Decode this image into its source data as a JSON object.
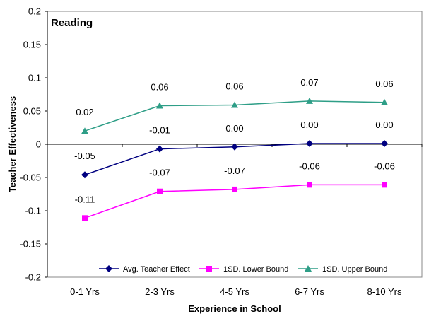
{
  "chart_data": {
    "type": "line",
    "title": "Reading",
    "xlabel": "Experience in School",
    "ylabel": "Teacher Effectiveness",
    "categories": [
      "0-1 Yrs",
      "2-3 Yrs",
      "4-5 Yrs",
      "6-7 Yrs",
      "8-10 Yrs"
    ],
    "ylim": [
      -0.2,
      0.2
    ],
    "yticks": [
      -0.2,
      -0.15,
      -0.1,
      -0.05,
      0,
      0.05,
      0.1,
      0.15,
      0.2
    ],
    "ytick_labels": [
      "-0.2",
      "-0.15",
      "-0.1",
      "-0.05",
      "0",
      "0.05",
      "0.1",
      "0.15",
      "0.2"
    ],
    "grid": false,
    "legend_position": "bottom-inside",
    "series": [
      {
        "name": "Avg. Teacher Effect",
        "color": "#000080",
        "marker": "diamond",
        "values": [
          -0.046,
          -0.007,
          -0.004,
          0.001,
          0.001
        ],
        "labels": [
          "-0.05",
          "-0.01",
          "0.00",
          "0.00",
          "0.00"
        ]
      },
      {
        "name": "1SD. Lower Bound",
        "color": "#FF00FF",
        "marker": "square",
        "values": [
          -0.111,
          -0.071,
          -0.068,
          -0.061,
          -0.061
        ],
        "labels": [
          "-0.11",
          "-0.07",
          "-0.07",
          "-0.06",
          "-0.06"
        ]
      },
      {
        "name": "1SD. Upper Bound",
        "color": "#2E9E87",
        "marker": "triangle",
        "values": [
          0.02,
          0.058,
          0.059,
          0.065,
          0.063
        ],
        "labels": [
          "0.02",
          "0.06",
          "0.06",
          "0.07",
          "0.06"
        ]
      }
    ]
  }
}
